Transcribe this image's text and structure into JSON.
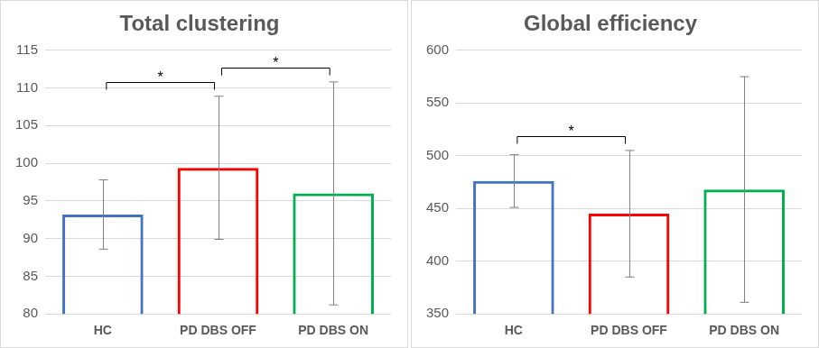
{
  "chart_data": [
    {
      "type": "bar",
      "title": "Total clustering",
      "categories": [
        "HC",
        "PD DBS OFF",
        "PD DBS ON"
      ],
      "values": [
        93.2,
        99.4,
        96.0
      ],
      "errors": [
        4.6,
        9.5,
        14.8
      ],
      "colors": [
        "#4472c4",
        "#ff0000",
        "#00b050"
      ],
      "ylim": [
        80,
        115
      ],
      "yticks": [
        80,
        85,
        90,
        95,
        100,
        105,
        110,
        115
      ],
      "grid": true,
      "annotations": [
        {
          "from": "HC",
          "to": "PD DBS OFF",
          "label": "*"
        },
        {
          "from": "PD DBS OFF",
          "to": "PD DBS ON",
          "label": "*"
        }
      ]
    },
    {
      "type": "bar",
      "title": "Global efficiency",
      "categories": [
        "HC",
        "PD DBS OFF",
        "PD DBS ON"
      ],
      "values": [
        476,
        445,
        468
      ],
      "errors": [
        25,
        60,
        107
      ],
      "colors": [
        "#4472c4",
        "#ff0000",
        "#00b050"
      ],
      "ylim": [
        350,
        600
      ],
      "yticks": [
        350,
        400,
        450,
        500,
        550,
        600
      ],
      "grid": true,
      "annotations": [
        {
          "from": "HC",
          "to": "PD DBS OFF",
          "label": "*"
        }
      ]
    }
  ]
}
